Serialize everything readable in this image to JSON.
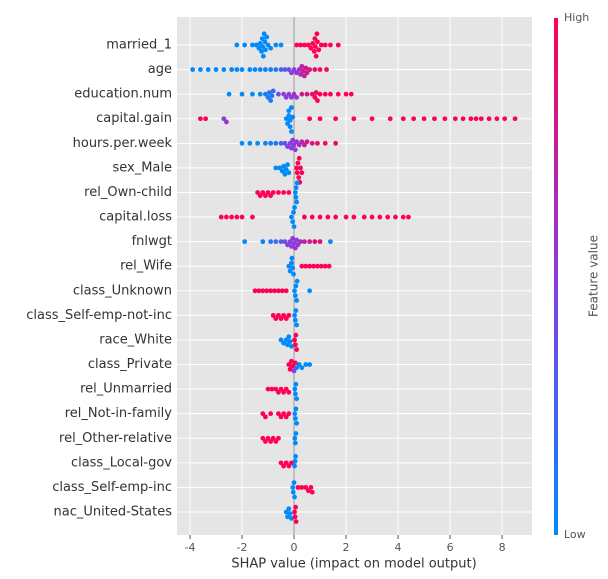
{
  "chart_data": {
    "type": "beeswarm",
    "xlabel": "SHAP value (impact on model output)",
    "xlim": [
      -4.5,
      9.15
    ],
    "xticks": [
      -4,
      -2,
      0,
      2,
      4,
      6,
      8
    ],
    "grid": true,
    "low_color": "#008afb",
    "high_color": "#ff0052",
    "colorbar": {
      "label": "Feature value",
      "high": "High",
      "low": "Low"
    },
    "series": [
      {
        "name": "married_1",
        "values": [
          -2.2,
          -1.9,
          -1.6,
          -1.45,
          -1.35,
          -1.3,
          -1.25,
          -1.22,
          -1.2,
          -1.18,
          -1.15,
          -1.12,
          -1.1,
          -1.05,
          -1.0,
          -0.9,
          -0.7,
          -0.5,
          0.1,
          0.25,
          0.4,
          0.55,
          0.65,
          0.72,
          0.78,
          0.8,
          0.82,
          0.85,
          0.88,
          0.9,
          0.95,
          1.05,
          1.2,
          1.4,
          1.7
        ],
        "feature_values": [
          0,
          0,
          0,
          0,
          0,
          0,
          0,
          0,
          0,
          0,
          0,
          0,
          0,
          0,
          0,
          0,
          0,
          0,
          1,
          1,
          1,
          1,
          1,
          1,
          1,
          1,
          1,
          1,
          1,
          1,
          1,
          1,
          1,
          1,
          1
        ]
      },
      {
        "name": "age",
        "values": [
          -3.9,
          -3.6,
          -3.3,
          -3.0,
          -2.7,
          -2.4,
          -2.2,
          -2.0,
          -1.7,
          -1.5,
          -1.3,
          -1.1,
          -0.9,
          -0.7,
          -0.5,
          -0.35,
          -0.2,
          -0.1,
          0.0,
          0.1,
          0.2,
          0.25,
          0.3,
          0.35,
          0.4,
          0.45,
          0.5,
          0.6,
          0.8,
          1.0,
          1.25
        ],
        "feature_values": [
          0,
          0,
          0,
          0,
          0,
          0,
          0,
          0,
          0,
          0,
          0,
          0.05,
          0.1,
          0.1,
          0.2,
          0.3,
          0.4,
          0.45,
          0.5,
          0.55,
          0.6,
          0.65,
          0.7,
          0.75,
          0.7,
          0.8,
          0.8,
          0.85,
          0.9,
          0.9,
          0.95
        ]
      },
      {
        "name": "education.num",
        "values": [
          -2.5,
          -2.0,
          -1.6,
          -1.3,
          -1.1,
          -1.0,
          -0.95,
          -0.9,
          -0.85,
          -0.8,
          -0.6,
          -0.4,
          -0.3,
          -0.2,
          -0.1,
          0.0,
          0.1,
          0.3,
          0.5,
          0.7,
          0.8,
          0.85,
          0.9,
          1.0,
          1.2,
          1.4,
          1.7,
          2.0,
          2.2
        ],
        "feature_values": [
          0,
          0,
          0,
          0,
          0.1,
          0.1,
          0.1,
          0.1,
          0.15,
          0.2,
          0.4,
          0.5,
          0.5,
          0.55,
          0.5,
          0.6,
          0.55,
          0.8,
          0.85,
          0.9,
          0.95,
          0.95,
          1,
          1,
          1,
          1,
          1,
          1,
          1
        ]
      },
      {
        "name": "capital.gain",
        "values": [
          -3.6,
          -3.4,
          -2.7,
          -2.6,
          -0.3,
          -0.25,
          -0.2,
          -0.2,
          -0.15,
          -0.15,
          -0.1,
          -0.1,
          -0.05,
          0.6,
          1.0,
          1.6,
          2.3,
          3.0,
          3.7,
          4.2,
          4.6,
          5.0,
          5.4,
          5.8,
          6.2,
          6.5,
          6.8,
          7.0,
          7.2,
          7.5,
          7.8,
          8.1,
          8.5
        ],
        "feature_values": [
          1,
          1,
          0.5,
          0.6,
          0,
          0,
          0,
          0,
          0,
          0,
          0,
          0,
          0,
          1,
          1,
          1,
          1,
          1,
          1,
          1,
          1,
          1,
          1,
          1,
          1,
          1,
          1,
          1,
          1,
          1,
          1,
          1,
          1
        ]
      },
      {
        "name": "hours.per.week",
        "values": [
          -2.0,
          -1.7,
          -1.4,
          -1.1,
          -0.9,
          -0.7,
          -0.5,
          -0.35,
          -0.25,
          -0.15,
          -0.1,
          -0.05,
          0.0,
          0.05,
          0.1,
          0.2,
          0.3,
          0.4,
          0.5,
          0.7,
          0.9,
          1.2,
          1.6
        ],
        "feature_values": [
          0,
          0,
          0,
          0.05,
          0.1,
          0.1,
          0.2,
          0.4,
          0.45,
          0.5,
          0.5,
          0.5,
          0.55,
          0.5,
          0.55,
          0.6,
          0.7,
          0.75,
          0.8,
          0.85,
          0.9,
          0.9,
          0.95
        ]
      },
      {
        "name": "sex_Male",
        "values": [
          -0.7,
          -0.55,
          -0.45,
          -0.4,
          -0.35,
          -0.3,
          -0.25,
          -0.2,
          0.1,
          0.12,
          0.15,
          0.18,
          0.2,
          0.22,
          0.25,
          0.3
        ],
        "feature_values": [
          0,
          0,
          0,
          0,
          0,
          0,
          0,
          0,
          1,
          1,
          1,
          1,
          1,
          1,
          1,
          1
        ]
      },
      {
        "name": "rel_Own-child",
        "values": [
          -1.4,
          -1.3,
          -1.2,
          -1.1,
          -1.0,
          -0.9,
          -0.8,
          -0.6,
          -0.4,
          -0.2,
          0.05,
          0.07,
          0.08,
          0.1,
          0.12
        ],
        "feature_values": [
          1,
          1,
          1,
          1,
          1,
          1,
          1,
          1,
          1,
          1,
          0,
          0,
          0,
          0,
          0
        ]
      },
      {
        "name": "capital.loss",
        "values": [
          -2.8,
          -2.6,
          -2.4,
          -2.2,
          -2.0,
          -1.6,
          -0.1,
          -0.05,
          -0.02,
          0.0,
          0.02,
          0.4,
          0.7,
          1.0,
          1.3,
          1.6,
          2.0,
          2.3,
          2.7,
          3.0,
          3.3,
          3.6,
          3.9,
          4.2,
          4.4
        ],
        "feature_values": [
          1,
          1,
          1,
          1,
          1,
          1,
          0,
          0,
          0,
          0,
          0,
          1,
          1,
          1,
          1,
          1,
          1,
          1,
          1,
          1,
          1,
          1,
          1,
          1,
          1
        ]
      },
      {
        "name": "fnlwgt",
        "values": [
          -1.9,
          -1.2,
          -0.9,
          -0.7,
          -0.5,
          -0.35,
          -0.25,
          -0.15,
          -0.1,
          -0.05,
          0.0,
          0.05,
          0.1,
          0.15,
          0.25,
          0.4,
          0.6,
          0.8,
          1.0,
          1.4
        ],
        "feature_values": [
          0,
          0.05,
          0.1,
          0.2,
          0.3,
          0.4,
          0.5,
          0.5,
          0.5,
          0.55,
          0.5,
          0.6,
          0.5,
          0.55,
          0.6,
          0.7,
          0.8,
          0.9,
          0.85,
          0
        ]
      },
      {
        "name": "rel_Wife",
        "values": [
          -0.2,
          -0.15,
          -0.1,
          -0.08,
          -0.05,
          -0.02,
          0.3,
          0.45,
          0.6,
          0.75,
          0.9,
          1.05,
          1.2,
          1.35
        ],
        "feature_values": [
          0,
          0,
          0,
          0,
          0,
          0,
          1,
          1,
          1,
          1,
          1,
          1,
          1,
          1
        ]
      },
      {
        "name": "class_Unknown",
        "values": [
          -1.5,
          -1.35,
          -1.2,
          -1.05,
          -0.9,
          -0.75,
          -0.6,
          -0.45,
          -0.3,
          0.02,
          0.05,
          0.07,
          0.1,
          0.12,
          0.6
        ],
        "feature_values": [
          1,
          1,
          1,
          1,
          1,
          1,
          1,
          1,
          1,
          0,
          0,
          0,
          0,
          0,
          0
        ]
      },
      {
        "name": "class_Self-emp-not-inc",
        "values": [
          -0.8,
          -0.7,
          -0.6,
          -0.5,
          -0.4,
          -0.3,
          -0.2,
          0.02,
          0.05,
          0.07,
          0.1
        ],
        "feature_values": [
          1,
          1,
          1,
          1,
          1,
          1,
          1,
          0,
          0,
          0,
          0
        ]
      },
      {
        "name": "race_White",
        "values": [
          -0.5,
          -0.4,
          -0.3,
          -0.25,
          -0.2,
          -0.15,
          -0.1,
          0.02,
          0.05,
          0.07,
          0.1
        ],
        "feature_values": [
          0,
          0,
          0,
          0,
          0,
          0,
          0,
          1,
          1,
          1,
          1
        ]
      },
      {
        "name": "class_Private",
        "values": [
          -0.2,
          -0.15,
          -0.1,
          -0.05,
          0.0,
          0.05,
          0.1,
          0.2,
          0.3,
          0.45,
          0.6
        ],
        "feature_values": [
          1,
          1,
          1,
          1,
          0.5,
          1,
          0,
          0,
          0,
          0,
          0
        ]
      },
      {
        "name": "rel_Unmarried",
        "values": [
          -1.0,
          -0.85,
          -0.7,
          -0.6,
          -0.5,
          -0.4,
          -0.3,
          -0.2,
          0.03,
          0.05,
          0.07,
          0.1
        ],
        "feature_values": [
          1,
          1,
          1,
          1,
          1,
          1,
          1,
          1,
          0,
          0,
          0,
          0
        ]
      },
      {
        "name": "rel_Not-in-family",
        "values": [
          -1.2,
          -1.1,
          -0.9,
          -0.6,
          -0.5,
          -0.4,
          -0.3,
          -0.2,
          0.03,
          0.05,
          0.07,
          0.1
        ],
        "feature_values": [
          1,
          1,
          1,
          1,
          1,
          1,
          1,
          1,
          0,
          0,
          0,
          0
        ]
      },
      {
        "name": "rel_Other-relative",
        "values": [
          -1.2,
          -1.1,
          -1.0,
          -0.9,
          -0.8,
          -0.7,
          -0.6,
          0.03,
          0.05,
          0.07
        ],
        "feature_values": [
          1,
          1,
          1,
          1,
          1,
          1,
          1,
          0,
          0,
          0
        ]
      },
      {
        "name": "class_Local-gov",
        "values": [
          -0.5,
          -0.4,
          -0.3,
          -0.2,
          -0.1,
          0.02,
          0.04,
          0.06
        ],
        "feature_values": [
          1,
          1,
          1,
          1,
          1,
          0,
          0,
          0
        ]
      },
      {
        "name": "class_Self-emp-inc",
        "values": [
          -0.05,
          -0.03,
          0.0,
          0.02,
          0.15,
          0.3,
          0.45,
          0.55,
          0.65,
          0.7
        ],
        "feature_values": [
          0,
          0,
          0,
          0,
          1,
          1,
          1,
          1,
          1,
          1
        ]
      },
      {
        "name": "nac_United-States",
        "values": [
          -0.3,
          -0.25,
          -0.2,
          -0.15,
          -0.1,
          0.02,
          0.04,
          0.06,
          0.08
        ],
        "feature_values": [
          0,
          0,
          0,
          0,
          0,
          1,
          1,
          1,
          1
        ]
      }
    ]
  }
}
